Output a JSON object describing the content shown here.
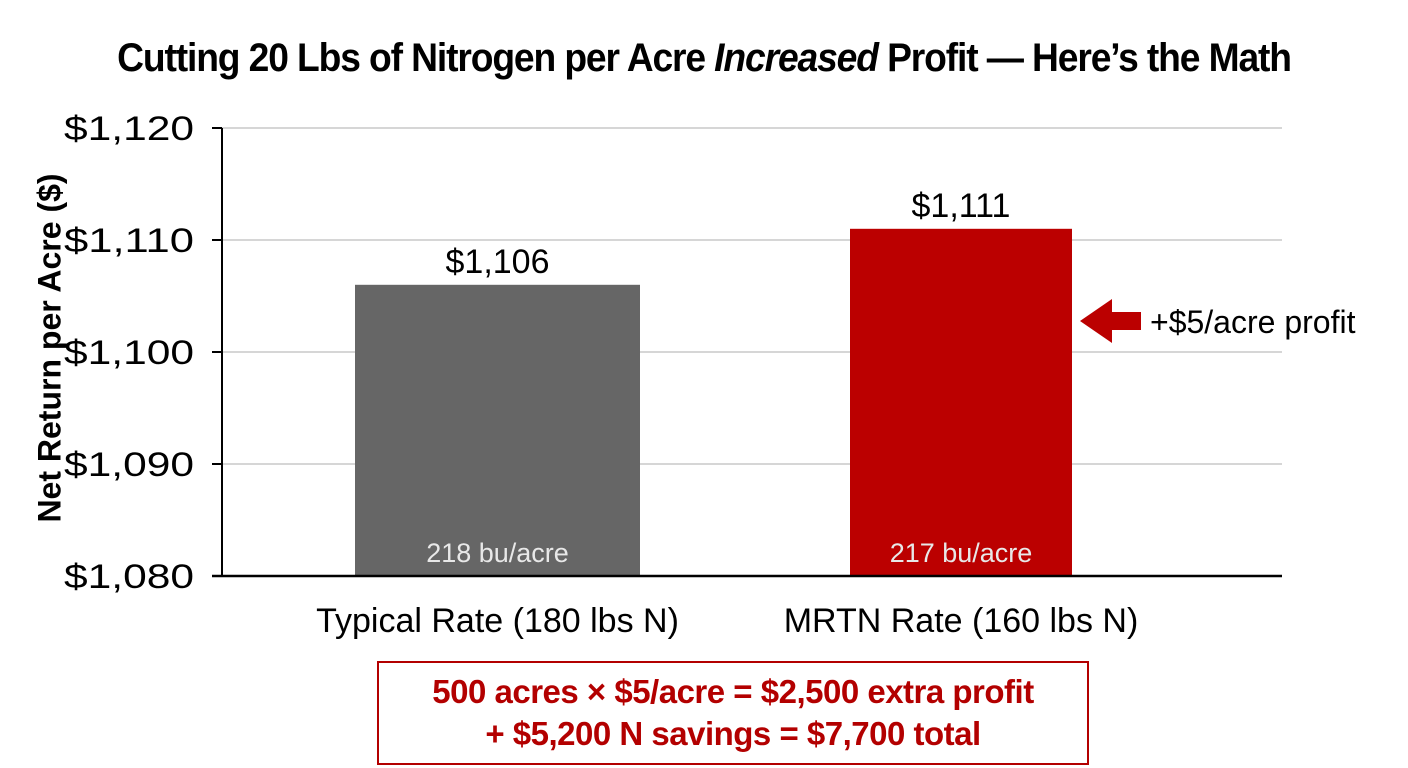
{
  "chart_data": {
    "type": "bar",
    "title_parts": [
      "Cutting 20 Lbs of Nitrogen per Acre ",
      "Increased",
      " Profit — Here’s the Math"
    ],
    "ylabel": "Net Return per Acre ($)",
    "xlabel": "",
    "ylim": [
      1080,
      1120
    ],
    "yticks": [
      1080,
      1090,
      1100,
      1110,
      1120
    ],
    "ytick_labels": [
      "$1,080",
      "$1,090",
      "$1,100",
      "$1,110",
      "$1,120"
    ],
    "grid": true,
    "categories": [
      "Typical Rate (180 lbs N)",
      "MRTN Rate (160 lbs N)"
    ],
    "values": [
      1106,
      1111
    ],
    "value_labels": [
      "$1,106",
      "$1,111"
    ],
    "inner_labels": [
      "218 bu/acre",
      "217 bu/acre"
    ],
    "colors": [
      "#666666",
      "#bb0000"
    ],
    "annotation": {
      "text": "+$5/acre profit",
      "color": "#bb0000",
      "points_to": "MRTN Rate (160 lbs N)"
    }
  },
  "summary": {
    "line1": "500 acres × $5/acre = $2,500 extra profit",
    "line2": "+ $5,200 N savings = $7,700 total"
  }
}
